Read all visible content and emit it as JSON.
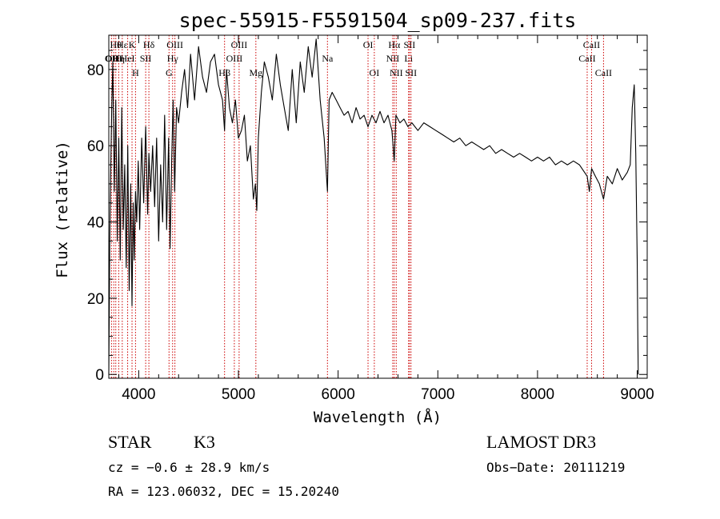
{
  "chart_data": {
    "type": "line",
    "title": "spec-55915-F5591504_sp09-237.fits",
    "xlabel": "Wavelength (Å)",
    "ylabel": "Flux (relative)",
    "xlim": [
      3700,
      9100
    ],
    "ylim": [
      -1,
      89
    ],
    "xticks": [
      4000,
      5000,
      6000,
      7000,
      8000,
      9000
    ],
    "yticks": [
      0,
      20,
      40,
      60,
      80
    ],
    "line_color": "#000000",
    "marker_color": "#cc0000",
    "series": [
      {
        "name": "flux",
        "x": [
          3700,
          3710,
          3720,
          3730,
          3740,
          3755,
          3770,
          3785,
          3800,
          3815,
          3830,
          3845,
          3860,
          3875,
          3890,
          3905,
          3920,
          3933,
          3945,
          3955,
          3968,
          3980,
          3995,
          4010,
          4030,
          4050,
          4070,
          4090,
          4102,
          4120,
          4140,
          4160,
          4180,
          4200,
          4220,
          4240,
          4260,
          4280,
          4300,
          4315,
          4330,
          4345,
          4360,
          4380,
          4400,
          4430,
          4460,
          4490,
          4520,
          4560,
          4600,
          4640,
          4680,
          4720,
          4760,
          4800,
          4840,
          4861,
          4880,
          4910,
          4940,
          4970,
          5000,
          5030,
          5060,
          5090,
          5120,
          5150,
          5170,
          5184,
          5200,
          5230,
          5260,
          5300,
          5340,
          5380,
          5420,
          5460,
          5500,
          5540,
          5580,
          5620,
          5660,
          5700,
          5740,
          5780,
          5820,
          5860,
          5893,
          5910,
          5940,
          5980,
          6020,
          6060,
          6100,
          6140,
          6180,
          6220,
          6260,
          6300,
          6340,
          6380,
          6420,
          6460,
          6500,
          6540,
          6563,
          6580,
          6620,
          6660,
          6700,
          6740,
          6800,
          6860,
          6920,
          6980,
          7040,
          7100,
          7160,
          7220,
          7280,
          7340,
          7400,
          7460,
          7520,
          7580,
          7640,
          7700,
          7760,
          7820,
          7880,
          7940,
          8000,
          8060,
          8120,
          8180,
          8240,
          8300,
          8360,
          8420,
          8498,
          8520,
          8542,
          8580,
          8620,
          8662,
          8700,
          8750,
          8800,
          8850,
          8900,
          8930,
          8950,
          8970,
          8985,
          9000,
          9005,
          9010
        ],
        "y": [
          0,
          35,
          55,
          70,
          82,
          48,
          72,
          35,
          62,
          30,
          70,
          38,
          55,
          28,
          60,
          22,
          50,
          18,
          45,
          30,
          48,
          40,
          56,
          38,
          62,
          45,
          65,
          42,
          58,
          48,
          60,
          44,
          62,
          35,
          55,
          40,
          68,
          38,
          62,
          33,
          55,
          72,
          48,
          70,
          66,
          74,
          80,
          70,
          84,
          72,
          86,
          78,
          74,
          82,
          84,
          76,
          72,
          64,
          80,
          70,
          66,
          72,
          62,
          64,
          68,
          56,
          60,
          46,
          50,
          43,
          62,
          74,
          82,
          78,
          72,
          84,
          76,
          70,
          64,
          80,
          66,
          82,
          74,
          86,
          78,
          88,
          72,
          62,
          48,
          72,
          74,
          72,
          70,
          68,
          69,
          66,
          70,
          67,
          68,
          65,
          68,
          66,
          69,
          66,
          68,
          64,
          56,
          68,
          66,
          67,
          65,
          66,
          64,
          66,
          65,
          64,
          63,
          62,
          61,
          62,
          60,
          61,
          60,
          59,
          60,
          58,
          59,
          58,
          57,
          58,
          57,
          56,
          57,
          56,
          57,
          55,
          56,
          55,
          56,
          55,
          52,
          48,
          54,
          52,
          50,
          46,
          52,
          50,
          54,
          51,
          53,
          55,
          70,
          76,
          58,
          30,
          12,
          0
        ]
      }
    ],
    "line_markers": [
      {
        "wl": 3727,
        "label": "OII",
        "row": 2
      },
      {
        "wl": 3750,
        "label": "OIII",
        "row": 2
      },
      {
        "wl": 3770,
        "label": "Hθ",
        "row": 1
      },
      {
        "wl": 3800,
        "label": "Hη",
        "row": 2
      },
      {
        "wl": 3835,
        "label": "Hε",
        "row": 1
      },
      {
        "wl": 3889,
        "label": "HeI",
        "row": 2
      },
      {
        "wl": 3933,
        "label": "K",
        "row": 1
      },
      {
        "wl": 3968,
        "label": "H",
        "row": 3
      },
      {
        "wl": 4070,
        "label": "SII",
        "row": 2
      },
      {
        "wl": 4102,
        "label": "Hδ",
        "row": 1
      },
      {
        "wl": 4304,
        "label": "G",
        "row": 3
      },
      {
        "wl": 4340,
        "label": "Hγ",
        "row": 2
      },
      {
        "wl": 4363,
        "label": "OIII",
        "row": 1
      },
      {
        "wl": 4861,
        "label": "Hβ",
        "row": 3
      },
      {
        "wl": 4959,
        "label": "OIII",
        "row": 2
      },
      {
        "wl": 5007,
        "label": "OIII",
        "row": 1
      },
      {
        "wl": 5175,
        "label": "Mg",
        "row": 3
      },
      {
        "wl": 5893,
        "label": "Na",
        "row": 2
      },
      {
        "wl": 6300,
        "label": "OI",
        "row": 1
      },
      {
        "wl": 6363,
        "label": "OI",
        "row": 3
      },
      {
        "wl": 6548,
        "label": "NII",
        "row": 2
      },
      {
        "wl": 6563,
        "label": "Hα",
        "row": 1
      },
      {
        "wl": 6583,
        "label": "NII",
        "row": 3
      },
      {
        "wl": 6707,
        "label": "Li",
        "row": 2
      },
      {
        "wl": 6716,
        "label": "SII",
        "row": 1
      },
      {
        "wl": 6731,
        "label": "SII",
        "row": 3
      },
      {
        "wl": 8498,
        "label": "CaII",
        "row": 2
      },
      {
        "wl": 8542,
        "label": "CaII",
        "row": 1
      },
      {
        "wl": 8662,
        "label": "CaII",
        "row": 3
      }
    ]
  },
  "info": {
    "object_class": "STAR",
    "subclass": "K3",
    "survey": "LAMOST DR3",
    "redshift": "cz = −0.6 ± 28.9 km/s",
    "obs_date": "Obs−Date: 20111219",
    "coords": "RA = 123.06032, DEC =  15.20240"
  }
}
